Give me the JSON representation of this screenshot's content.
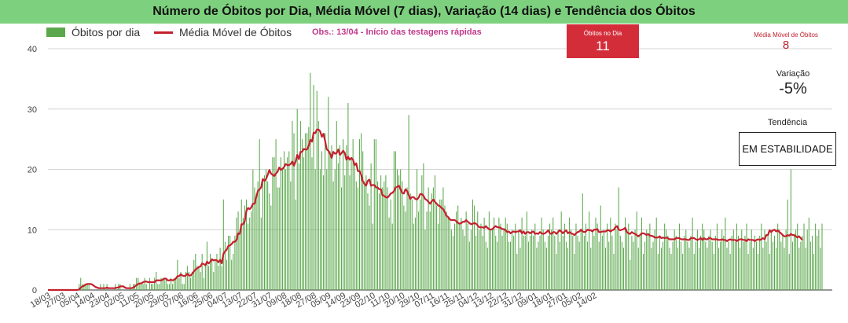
{
  "title": "Número de Óbitos por Dia, Média Móvel (7 dias), Variação (14 dias) e Tendência dos Óbitos",
  "colors": {
    "title_bg": "#7dd17e",
    "bars": "#5aa84b",
    "line": "#c4202e",
    "obs": "#c0398c",
    "card_bg": "#d42d3a",
    "media_text": "#c4202e"
  },
  "legend": {
    "bars_label": "Óbitos por dia",
    "line_label": "Média Móvel de Óbitos"
  },
  "obs_note": "Obs.: 13/04 - Início das testagens rápidas",
  "cards": {
    "obitos_label": "Óbitos no Dia",
    "obitos_value": "11",
    "media_label": "Média Móvel de Óbitos",
    "media_value": "8",
    "variacao_label": "Variação",
    "variacao_value": "-5%",
    "tendencia_label": "Tendência",
    "tendencia_value": "EM ESTABILIDADE"
  },
  "chart_data": {
    "type": "bar",
    "ylim": [
      0,
      40
    ],
    "yticks": [
      0,
      10,
      20,
      30,
      40
    ],
    "grid": true,
    "legend_position": "top-left",
    "x_tick_labels": [
      "18/03",
      "27/03",
      "05/04",
      "14/04",
      "23/04",
      "02/05",
      "11/05",
      "20/05",
      "29/05",
      "07/06",
      "16/06",
      "25/06",
      "04/07",
      "13/07",
      "22/07",
      "31/07",
      "09/08",
      "18/08",
      "27/08",
      "05/09",
      "14/09",
      "23/09",
      "02/10",
      "11/10",
      "20/10",
      "29/10",
      "07/11",
      "16/11",
      "25/11",
      "04/12",
      "13/12",
      "22/12",
      "31/12",
      "09/01",
      "18/01",
      "27/01",
      "05/02",
      "14/02"
    ],
    "tick_interval_days": 9,
    "series": [
      {
        "name": "Óbitos por dia",
        "type": "bar",
        "values": [
          0,
          0,
          0,
          0,
          0,
          0,
          0,
          0,
          0,
          0,
          0,
          0,
          0,
          0,
          0,
          0,
          0,
          0,
          0,
          1,
          2,
          1,
          1,
          1,
          1,
          1,
          0,
          0,
          0,
          0,
          0,
          0,
          1,
          0,
          1,
          0,
          1,
          0,
          0,
          0,
          0,
          1,
          0,
          1,
          1,
          0,
          0,
          0,
          0,
          0,
          1,
          0,
          1,
          1,
          2,
          2,
          1,
          1,
          1,
          2,
          1,
          0,
          2,
          1,
          1,
          2,
          3,
          1,
          1,
          2,
          2,
          2,
          2,
          1,
          1,
          2,
          1,
          2,
          2,
          5,
          2,
          3,
          1,
          1,
          3,
          4,
          3,
          2,
          3,
          5,
          6,
          4,
          4,
          3,
          6,
          2,
          4,
          8,
          4,
          6,
          5,
          3,
          5,
          6,
          4,
          7,
          4,
          15,
          8,
          5,
          9,
          9,
          5,
          6,
          9,
          12,
          13,
          10,
          15,
          12,
          14,
          15,
          11,
          12,
          13,
          20,
          17,
          16,
          18,
          25,
          12,
          18,
          19,
          20,
          18,
          16,
          14,
          22,
          22,
          25,
          17,
          17,
          22,
          20,
          23,
          20,
          22,
          23,
          18,
          28,
          26,
          15,
          30,
          21,
          28,
          25,
          22,
          26,
          26,
          27,
          36,
          22,
          34,
          20,
          33,
          28,
          20,
          23,
          19,
          26,
          20,
          32,
          23,
          24,
          18,
          20,
          28,
          21,
          24,
          17,
          25,
          19,
          24,
          31,
          19,
          22,
          25,
          21,
          18,
          17,
          25,
          26,
          23,
          18,
          19,
          16,
          14,
          21,
          11,
          25,
          25,
          18,
          16,
          19,
          17,
          18,
          19,
          17,
          12,
          15,
          11,
          23,
          23,
          20,
          19,
          20,
          18,
          14,
          13,
          17,
          29,
          16,
          15,
          11,
          12,
          20,
          13,
          15,
          19,
          21,
          10,
          13,
          17,
          13,
          16,
          17,
          19,
          14,
          11,
          15,
          15,
          17,
          14,
          13,
          12,
          12,
          10,
          9,
          11,
          13,
          14,
          11,
          12,
          10,
          9,
          13,
          11,
          8,
          10,
          15,
          14,
          9,
          13,
          10,
          11,
          9,
          12,
          8,
          7,
          13,
          10,
          10,
          12,
          9,
          8,
          12,
          11,
          9,
          10,
          12,
          11,
          8,
          8,
          10,
          9,
          11,
          6,
          10,
          7,
          12,
          9,
          9,
          13,
          8,
          9,
          10,
          9,
          11,
          7,
          8,
          9,
          12,
          10,
          8,
          7,
          9,
          11,
          10,
          12,
          9,
          6,
          10,
          8,
          13,
          9,
          11,
          8,
          7,
          12,
          10,
          9,
          6,
          11,
          9,
          8,
          10,
          16,
          9,
          11,
          8,
          13,
          7,
          10,
          9,
          12,
          11,
          8,
          14,
          9,
          10,
          7,
          11,
          8,
          12,
          9,
          6,
          11,
          10,
          17,
          9,
          8,
          7,
          12,
          10,
          11,
          5,
          9,
          8,
          10,
          13,
          7,
          9,
          12,
          6,
          8,
          10,
          9,
          11,
          7,
          8,
          10,
          12,
          6,
          9,
          7,
          8,
          11,
          10,
          9,
          7,
          6,
          8,
          10,
          9,
          7,
          11,
          8,
          6,
          9,
          10,
          8,
          7,
          9,
          12,
          6,
          8,
          10,
          7,
          9,
          11,
          10,
          8,
          7,
          9,
          10,
          8,
          6,
          9,
          11,
          7,
          8,
          10,
          9,
          12,
          7,
          8,
          6,
          9,
          10,
          8,
          11,
          9,
          7,
          10,
          8,
          9,
          11,
          6,
          8,
          10,
          7,
          9,
          8,
          6,
          9,
          11,
          7,
          10,
          8,
          9,
          6,
          10,
          8,
          9,
          7,
          11,
          10,
          8,
          9,
          7,
          10,
          15,
          6,
          20,
          8,
          9,
          10,
          11,
          7,
          8,
          9,
          11,
          7,
          10,
          12,
          8,
          9,
          6,
          11,
          9,
          10,
          7,
          11
        ]
      },
      {
        "name": "Média Móvel de Óbitos",
        "type": "line",
        "values": [
          0,
          0,
          0,
          0,
          0,
          0,
          0,
          0,
          0,
          0,
          0,
          0,
          0,
          0,
          0,
          0,
          0,
          0,
          0,
          0.1,
          0.4,
          0.6,
          0.7,
          0.9,
          1,
          1,
          1,
          0.9,
          0.7,
          0.5,
          0.4,
          0.3,
          0.3,
          0.3,
          0.3,
          0.3,
          0.4,
          0.3,
          0.3,
          0.3,
          0.3,
          0.3,
          0.4,
          0.4,
          0.6,
          0.6,
          0.6,
          0.4,
          0.3,
          0.3,
          0.3,
          0.3,
          0.4,
          0.6,
          0.8,
          1,
          1.1,
          1.1,
          1.3,
          1.4,
          1.4,
          1.3,
          1.3,
          1.3,
          1.3,
          1.3,
          1.6,
          1.6,
          1.6,
          1.6,
          1.7,
          1.9,
          1.9,
          1.6,
          1.6,
          1.7,
          1.6,
          1.7,
          1.9,
          2.3,
          2.3,
          2.6,
          2.4,
          2.3,
          2.4,
          2.7,
          2.4,
          2.4,
          2.7,
          3.1,
          3.4,
          3.6,
          3.8,
          3.9,
          4.4,
          4.3,
          4.1,
          4.7,
          4.4,
          4.7,
          5.1,
          4.9,
          5,
          4.9,
          4.6,
          5,
          4.4,
          6,
          6.4,
          6.7,
          7.3,
          7.4,
          7.6,
          8,
          8,
          8.3,
          9.4,
          9.3,
          10.9,
          10.9,
          11.4,
          13.1,
          13.6,
          13.4,
          13.7,
          14.3,
          14.3,
          15.4,
          16.4,
          16.7,
          17,
          18.4,
          18.1,
          18.4,
          19.1,
          19.9,
          19.3,
          19.1,
          18.9,
          19.3,
          19.6,
          20.3,
          19.9,
          20.1,
          20.4,
          20.9,
          20.7,
          20.7,
          20.9,
          21.3,
          20.6,
          21.3,
          22.4,
          21.7,
          22.9,
          22.9,
          23.4,
          23.3,
          23.3,
          23.9,
          24.9,
          24.6,
          26.1,
          26,
          26.6,
          26.6,
          26.3,
          25.4,
          25.9,
          24.7,
          23.3,
          23.1,
          22.6,
          21.9,
          22.9,
          22.6,
          22.7,
          23.3,
          22.4,
          22.7,
          23.1,
          22.7,
          21.6,
          22.1,
          21.6,
          21.9,
          21.6,
          20.7,
          21,
          19.7,
          19.7,
          19.1,
          18,
          17.6,
          17.3,
          18.1,
          18.3,
          17.3,
          17.4,
          17.4,
          17,
          17,
          16.7,
          16.7,
          15.7,
          15.6,
          15.4,
          15.3,
          15.6,
          16,
          16.1,
          16.4,
          17,
          17.1,
          17.3,
          16.7,
          16.1,
          16,
          16.7,
          16.4,
          15.7,
          15.1,
          15.4,
          15.4,
          15.1,
          15,
          15.3,
          15.9,
          15.9,
          15.6,
          15.1,
          14.9,
          14.6,
          14.3,
          14.7,
          15,
          14.6,
          14.3,
          14,
          13.9,
          13.6,
          13.4,
          12.9,
          12.3,
          12.1,
          11.7,
          11.6,
          11.6,
          11.6,
          11.4,
          11.1,
          11,
          11.1,
          11.3,
          11.3,
          11.6,
          11.3,
          11.1,
          10.9,
          11,
          11.1,
          11,
          10.7,
          10.4,
          10.4,
          10.4,
          10.3,
          10.6,
          10.3,
          10.1,
          10,
          10.1,
          10.4,
          10.6,
          10.4,
          10.4,
          10.3,
          10.1,
          10.1,
          9.9,
          9.6,
          9.7,
          9.4,
          9.6,
          9.7,
          9.6,
          9.7,
          9.7,
          9.9,
          9.4,
          9.7,
          9.3,
          9.6,
          9.6,
          9.4,
          9.6,
          9.7,
          9.3,
          9.4,
          9.3,
          9.6,
          9.4,
          9.3,
          9.4,
          9.6,
          9.9,
          9.4,
          9.3,
          9.6,
          9.6,
          9.3,
          9.6,
          9.9,
          9.7,
          9.4,
          9.7,
          9.9,
          9.4,
          9.6,
          9.4,
          9.3,
          9.1,
          9.4,
          9.6,
          9.7,
          10,
          9.7,
          9.6,
          9.7,
          10,
          9.9,
          9.9,
          9.7,
          10,
          10,
          10.1,
          9.6,
          9.6,
          9.7,
          9.7,
          9.7,
          9.9,
          9.9,
          9.7,
          9.9,
          10,
          10.4,
          10.6,
          10,
          9.9,
          10,
          10.1,
          10.3,
          9.6,
          9.4,
          9.3,
          9.6,
          9.4,
          9.3,
          9.1,
          8.9,
          9.1,
          9.4,
          9.4,
          9.3,
          9.1,
          9.3,
          9,
          9,
          8.9,
          8.7,
          8.7,
          8.7,
          8.9,
          8.6,
          8.7,
          8.6,
          8.7,
          8.6,
          8.4,
          8.4,
          8.4,
          8.4,
          8.6,
          8.6,
          8.6,
          8.4,
          8.4,
          8.4,
          8.4,
          8.3,
          8.3,
          8.6,
          8.6,
          8.6,
          8.4,
          8.3,
          8.4,
          8.6,
          8.3,
          8.6,
          8.4,
          8.4,
          8.6,
          8.6,
          8.4,
          8.4,
          8.4,
          8.4,
          8.3,
          8.3,
          8.4,
          8.3,
          8.3,
          8.1,
          8.3,
          8.4,
          8.3,
          8.3,
          8.3,
          8.1,
          8.3,
          8.4,
          8.4,
          8.3,
          8.3,
          8.1,
          8.4,
          8.3,
          8.3,
          8.3,
          8.1,
          8.3,
          8.4,
          8.3,
          8.4,
          8.6,
          8.4,
          9.1,
          9.1,
          9.9,
          9.6,
          9.9,
          10,
          9.7,
          9.9,
          9.6,
          9.4,
          9.1,
          8.9,
          8.9,
          9.1,
          9,
          9.3,
          9.1,
          9.1,
          8.9,
          8.7,
          8.9,
          8.6,
          8.3
        ]
      }
    ]
  }
}
